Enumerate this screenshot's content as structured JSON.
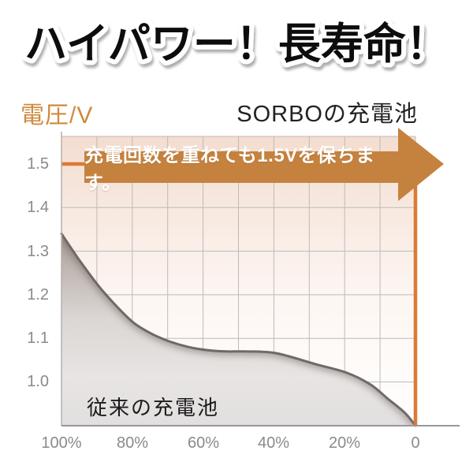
{
  "page": {
    "title": "ハイパワー！長寿命！"
  },
  "chart_header": {
    "y_axis_title": "電圧/V",
    "right_series_label": "SORBOの充電池"
  },
  "banner": {
    "text": "充電回数を重ねても1.5Vを保ちます。",
    "fill": "#C5823F",
    "text_color": "#ffffff"
  },
  "colors": {
    "accent_orange": "#DA7A35",
    "header_orange": "#CE8A3E",
    "curve_gray": "#6E6A66",
    "grid": "#bdbaba",
    "axis": "#9a9797",
    "tick_text": "#8a8a8a",
    "chart_bg_top": "#f4dfd2",
    "chart_bg_bottom": "#ffffff"
  },
  "chart_data": {
    "type": "line",
    "title": "ハイパワー！長寿命！",
    "ylabel": "電圧/V",
    "xtick_labels": [
      "100%",
      "80%",
      "60%",
      "40%",
      "20%",
      "0"
    ],
    "ytick_labels": [
      "1.5",
      "1.4",
      "1.3",
      "1.2",
      "1.1",
      "1.0"
    ],
    "x_range": [
      100,
      0
    ],
    "x_direction": "reversed",
    "y_range": [
      0.9,
      1.56
    ],
    "grid": true,
    "legend_position": "inline-annotations",
    "series": [
      {
        "name": "SORBOの充電池",
        "color": "#DA7A35",
        "style": "flat line at 1.5V, vertical drop at 0",
        "points": [
          [
            100,
            1.5
          ],
          [
            0,
            1.5
          ],
          [
            0,
            0.9
          ]
        ]
      },
      {
        "name": "従来の充電池",
        "color": "#6E6A66",
        "style": "declining gray curve with shaded area",
        "points": [
          [
            100,
            1.34
          ],
          [
            95,
            1.28
          ],
          [
            89.5,
            1.22
          ],
          [
            84,
            1.17
          ],
          [
            79.5,
            1.135
          ],
          [
            74.4,
            1.11
          ],
          [
            69.5,
            1.093
          ],
          [
            64,
            1.08
          ],
          [
            58.8,
            1.073
          ],
          [
            53.5,
            1.07
          ],
          [
            48.3,
            1.07
          ],
          [
            39.4,
            1.066
          ],
          [
            28.3,
            1.041
          ],
          [
            19.4,
            1.021
          ],
          [
            12.7,
            0.994
          ],
          [
            7.6,
            0.96
          ],
          [
            3.1,
            0.93
          ],
          [
            0,
            0.9
          ]
        ]
      }
    ],
    "annotations": [
      "充電回数を重ねても1.5Vを保ちます。",
      "従来の充電池"
    ]
  }
}
